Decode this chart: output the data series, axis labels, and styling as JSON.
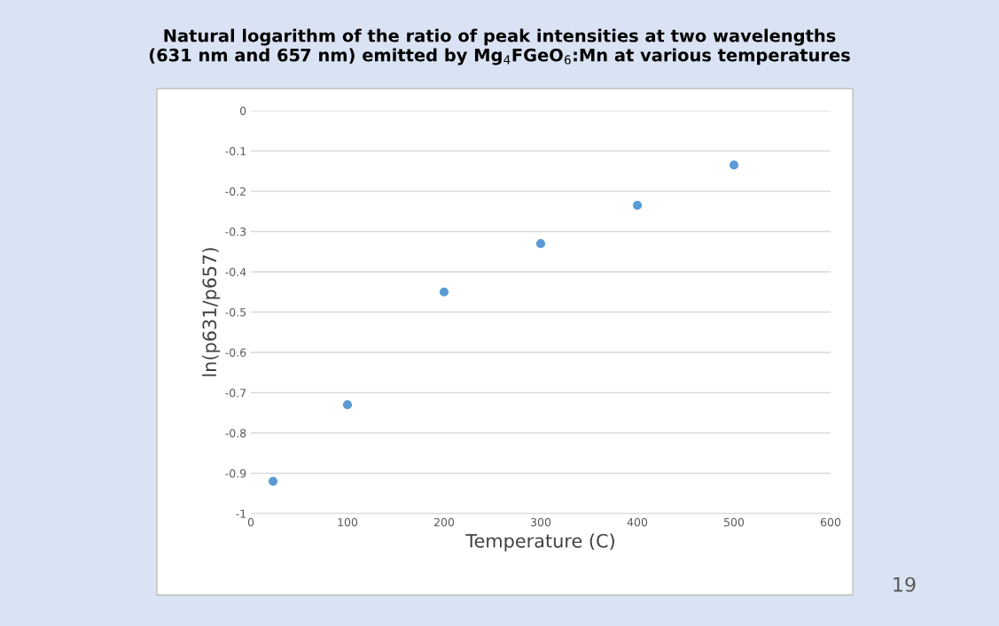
{
  "chart_data": {
    "type": "scatter",
    "title": "Natural logarithm of the ratio of peak intensities at two wavelengths\n(631 nm and 657 nm) emitted by Mg$_{4}$FGeO$_{6}$:Mn at various temperatures",
    "xlabel": "Temperature (C)",
    "ylabel": "ln(p631/p657)",
    "x": [
      23,
      100,
      200,
      300,
      400,
      500
    ],
    "series": [
      {
        "color": "#5b9bd5",
        "values": [
          -0.92,
          -0.73,
          -0.45,
          -0.33,
          -0.235,
          -0.135
        ]
      }
    ],
    "xlim": [
      0,
      600
    ],
    "xticks": [
      0,
      100,
      200,
      300,
      400,
      500,
      600
    ],
    "ylim": [
      -1,
      0
    ],
    "yticks": [
      {
        "value": -1,
        "label": "-1"
      },
      {
        "value": -0.9,
        "label": "-0.9"
      },
      {
        "value": -0.8,
        "label": "-0.8"
      },
      {
        "value": -0.7,
        "label": "-0.7"
      },
      {
        "value": -0.6,
        "label": "-0.6"
      },
      {
        "value": -0.5,
        "label": "-0.5"
      },
      {
        "value": -0.4,
        "label": "-0.4"
      },
      {
        "value": -0.3,
        "label": "-0.3"
      },
      {
        "value": -0.2,
        "label": "-0.2"
      },
      {
        "value": -0.1,
        "label": "-0.1"
      },
      {
        "value": 0,
        "label": "0"
      }
    ],
    "grid": "y",
    "marker": "circle",
    "annotations": [
      "19"
    ]
  }
}
